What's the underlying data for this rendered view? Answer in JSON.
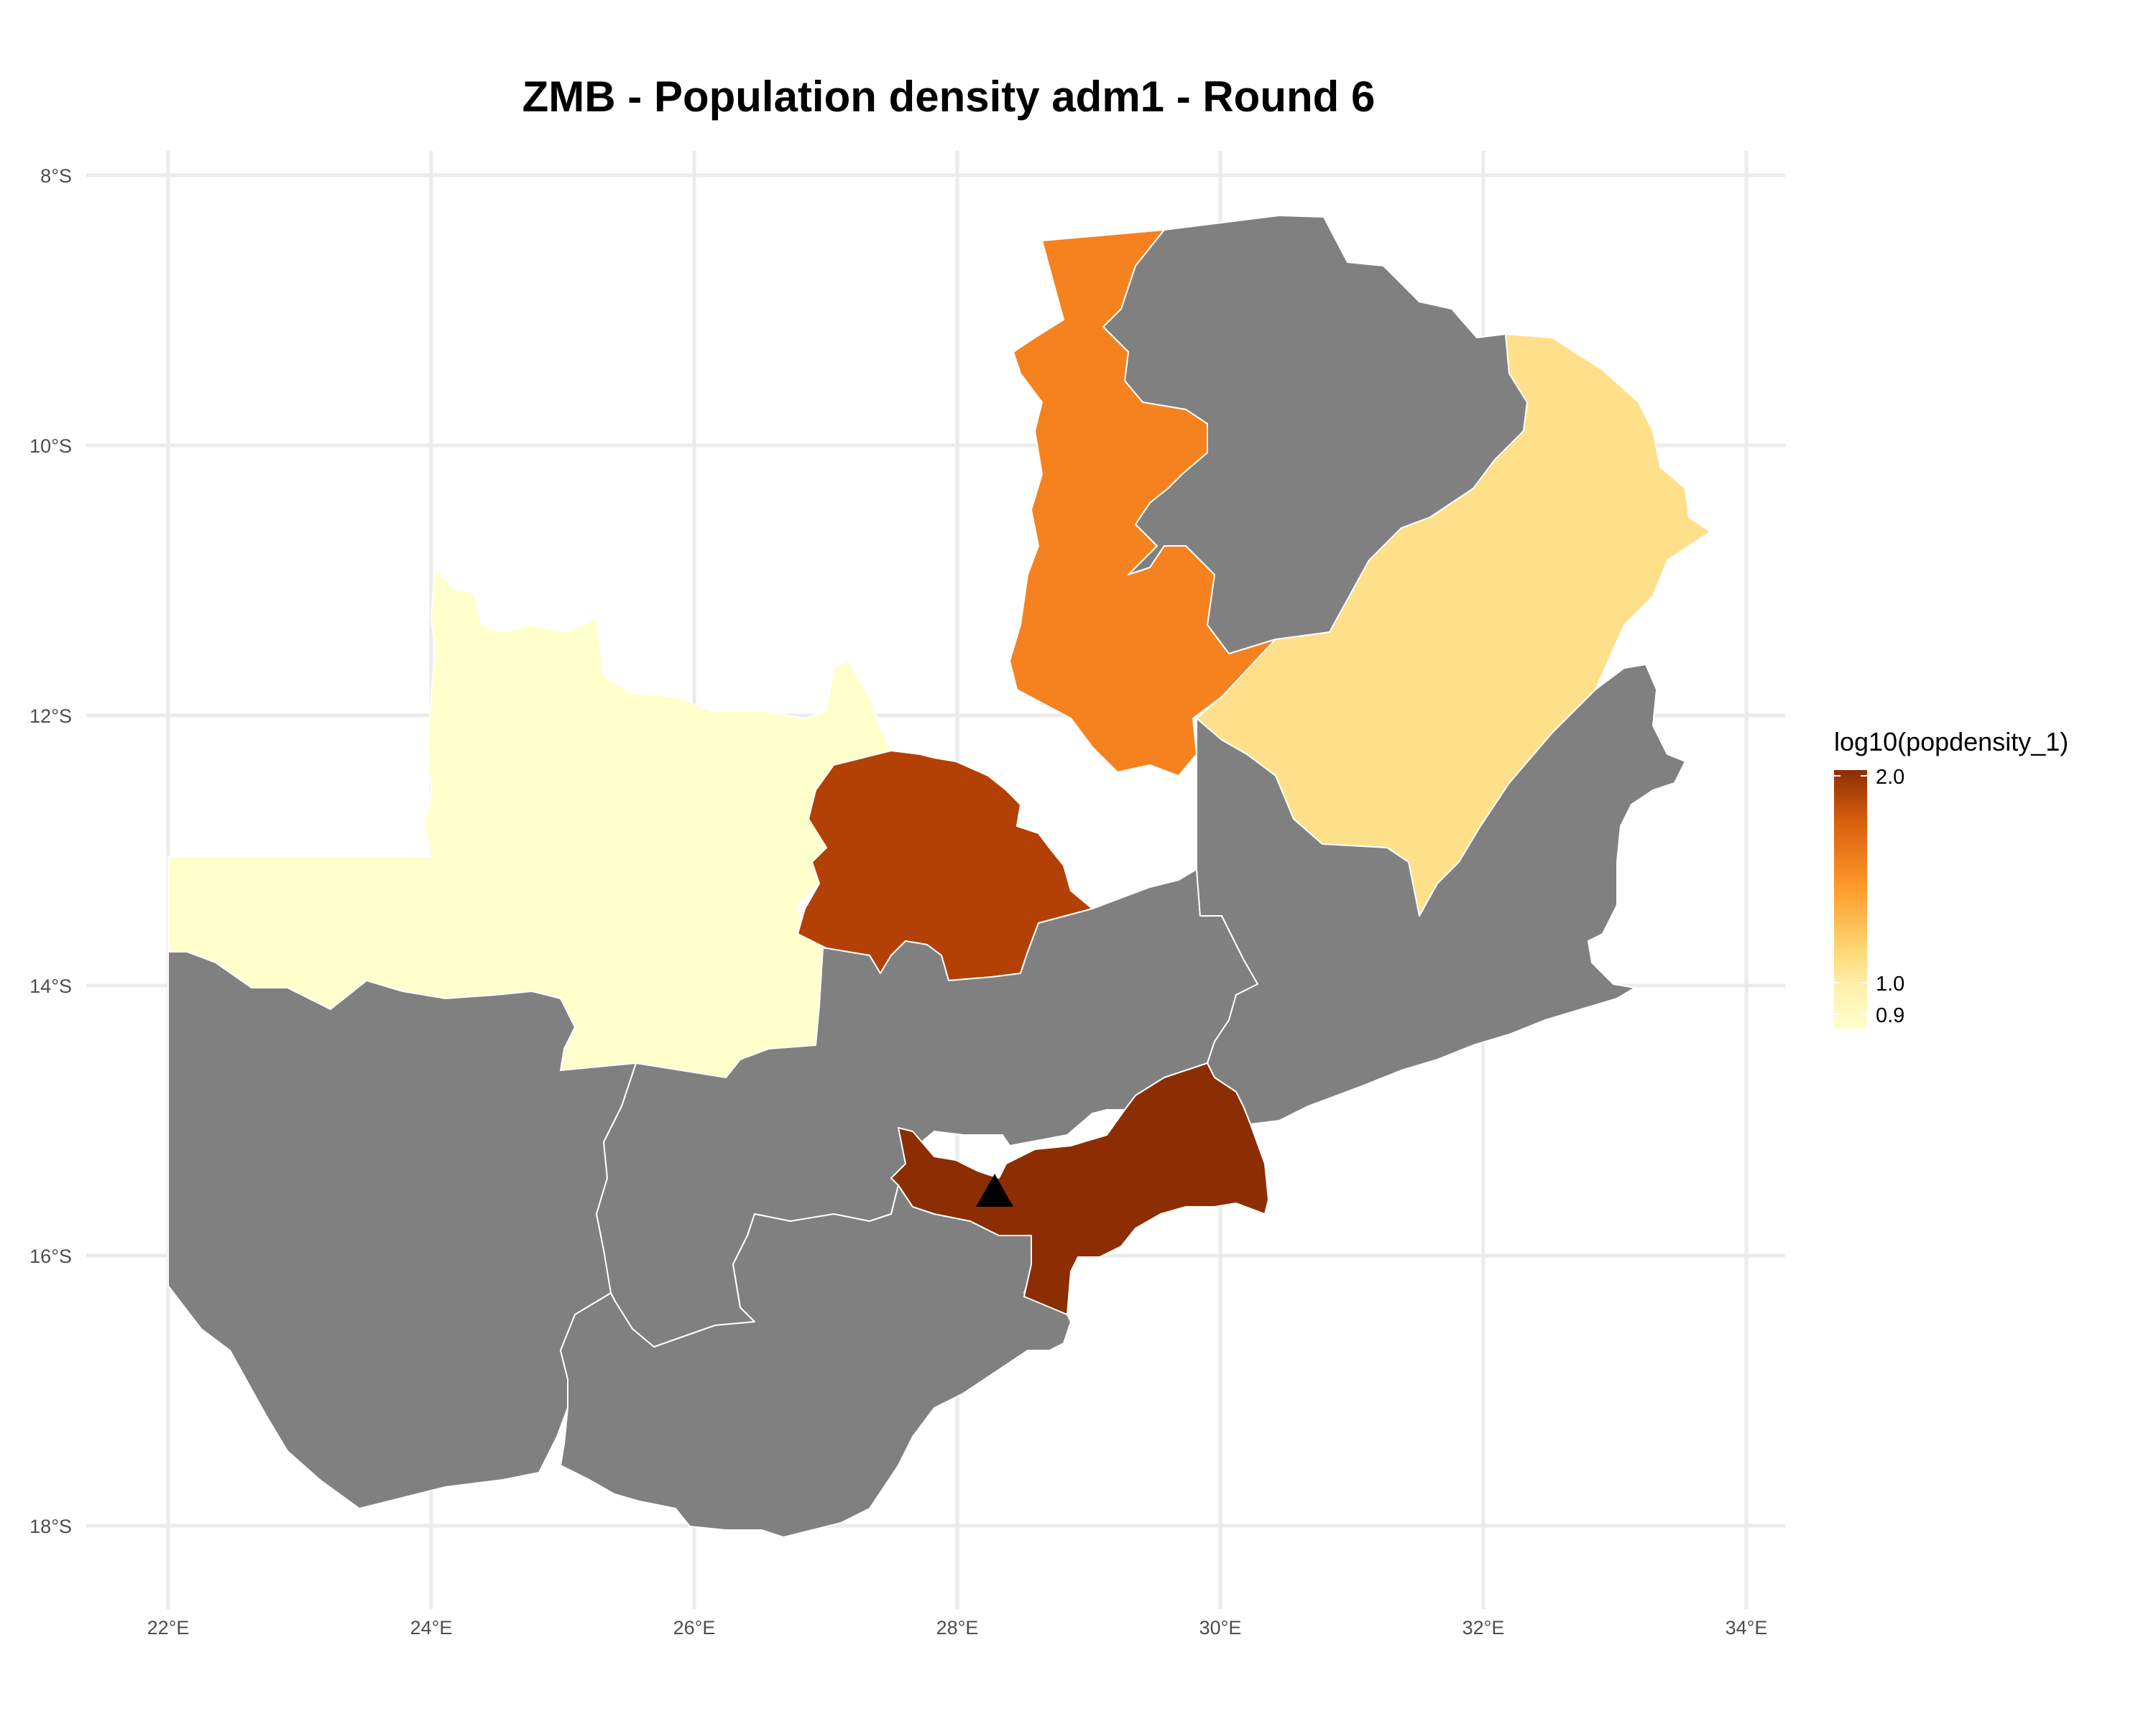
{
  "title": "ZMB - Population density adm1 - Round 6",
  "colors": {
    "background": "#ffffff",
    "grid": "#ebebeb",
    "no_data": "#808080",
    "region_border": "#ffffff",
    "scale_low": "#ffffcc",
    "scale_mid": "#fe9929",
    "scale_high": "#8c2d04"
  },
  "axes": {
    "x_ticks": [
      "22°E",
      "24°E",
      "26°E",
      "28°E",
      "30°E",
      "32°E",
      "34°E"
    ],
    "y_ticks": [
      "8°S",
      "10°S",
      "12°S",
      "14°S",
      "16°S",
      "18°S"
    ]
  },
  "legend": {
    "title": "log10(popdensity_1)",
    "labels": [
      "2.0",
      "1.0",
      "0.9"
    ],
    "range": [
      0.9,
      2.0
    ]
  },
  "regions": [
    {
      "id": "north-western",
      "fill": "#ffffcc",
      "value": 0.9
    },
    {
      "id": "luapula",
      "fill": "#f5821f",
      "value": 1.55
    },
    {
      "id": "muchinga",
      "fill": "#fee08b",
      "value": 1.1
    },
    {
      "id": "copperbelt",
      "fill": "#b34005",
      "value": 1.85
    },
    {
      "id": "lusaka",
      "fill": "#8c2d04",
      "value": 2.0
    },
    {
      "id": "northern",
      "fill": "#808080",
      "value": null
    },
    {
      "id": "western",
      "fill": "#808080",
      "value": null
    },
    {
      "id": "central",
      "fill": "#808080",
      "value": null
    },
    {
      "id": "southern",
      "fill": "#808080",
      "value": null
    },
    {
      "id": "eastern",
      "fill": "#808080",
      "value": null
    }
  ],
  "marker": {
    "symbol": "triangle",
    "lon": 28.28,
    "lat": -15.42
  }
}
